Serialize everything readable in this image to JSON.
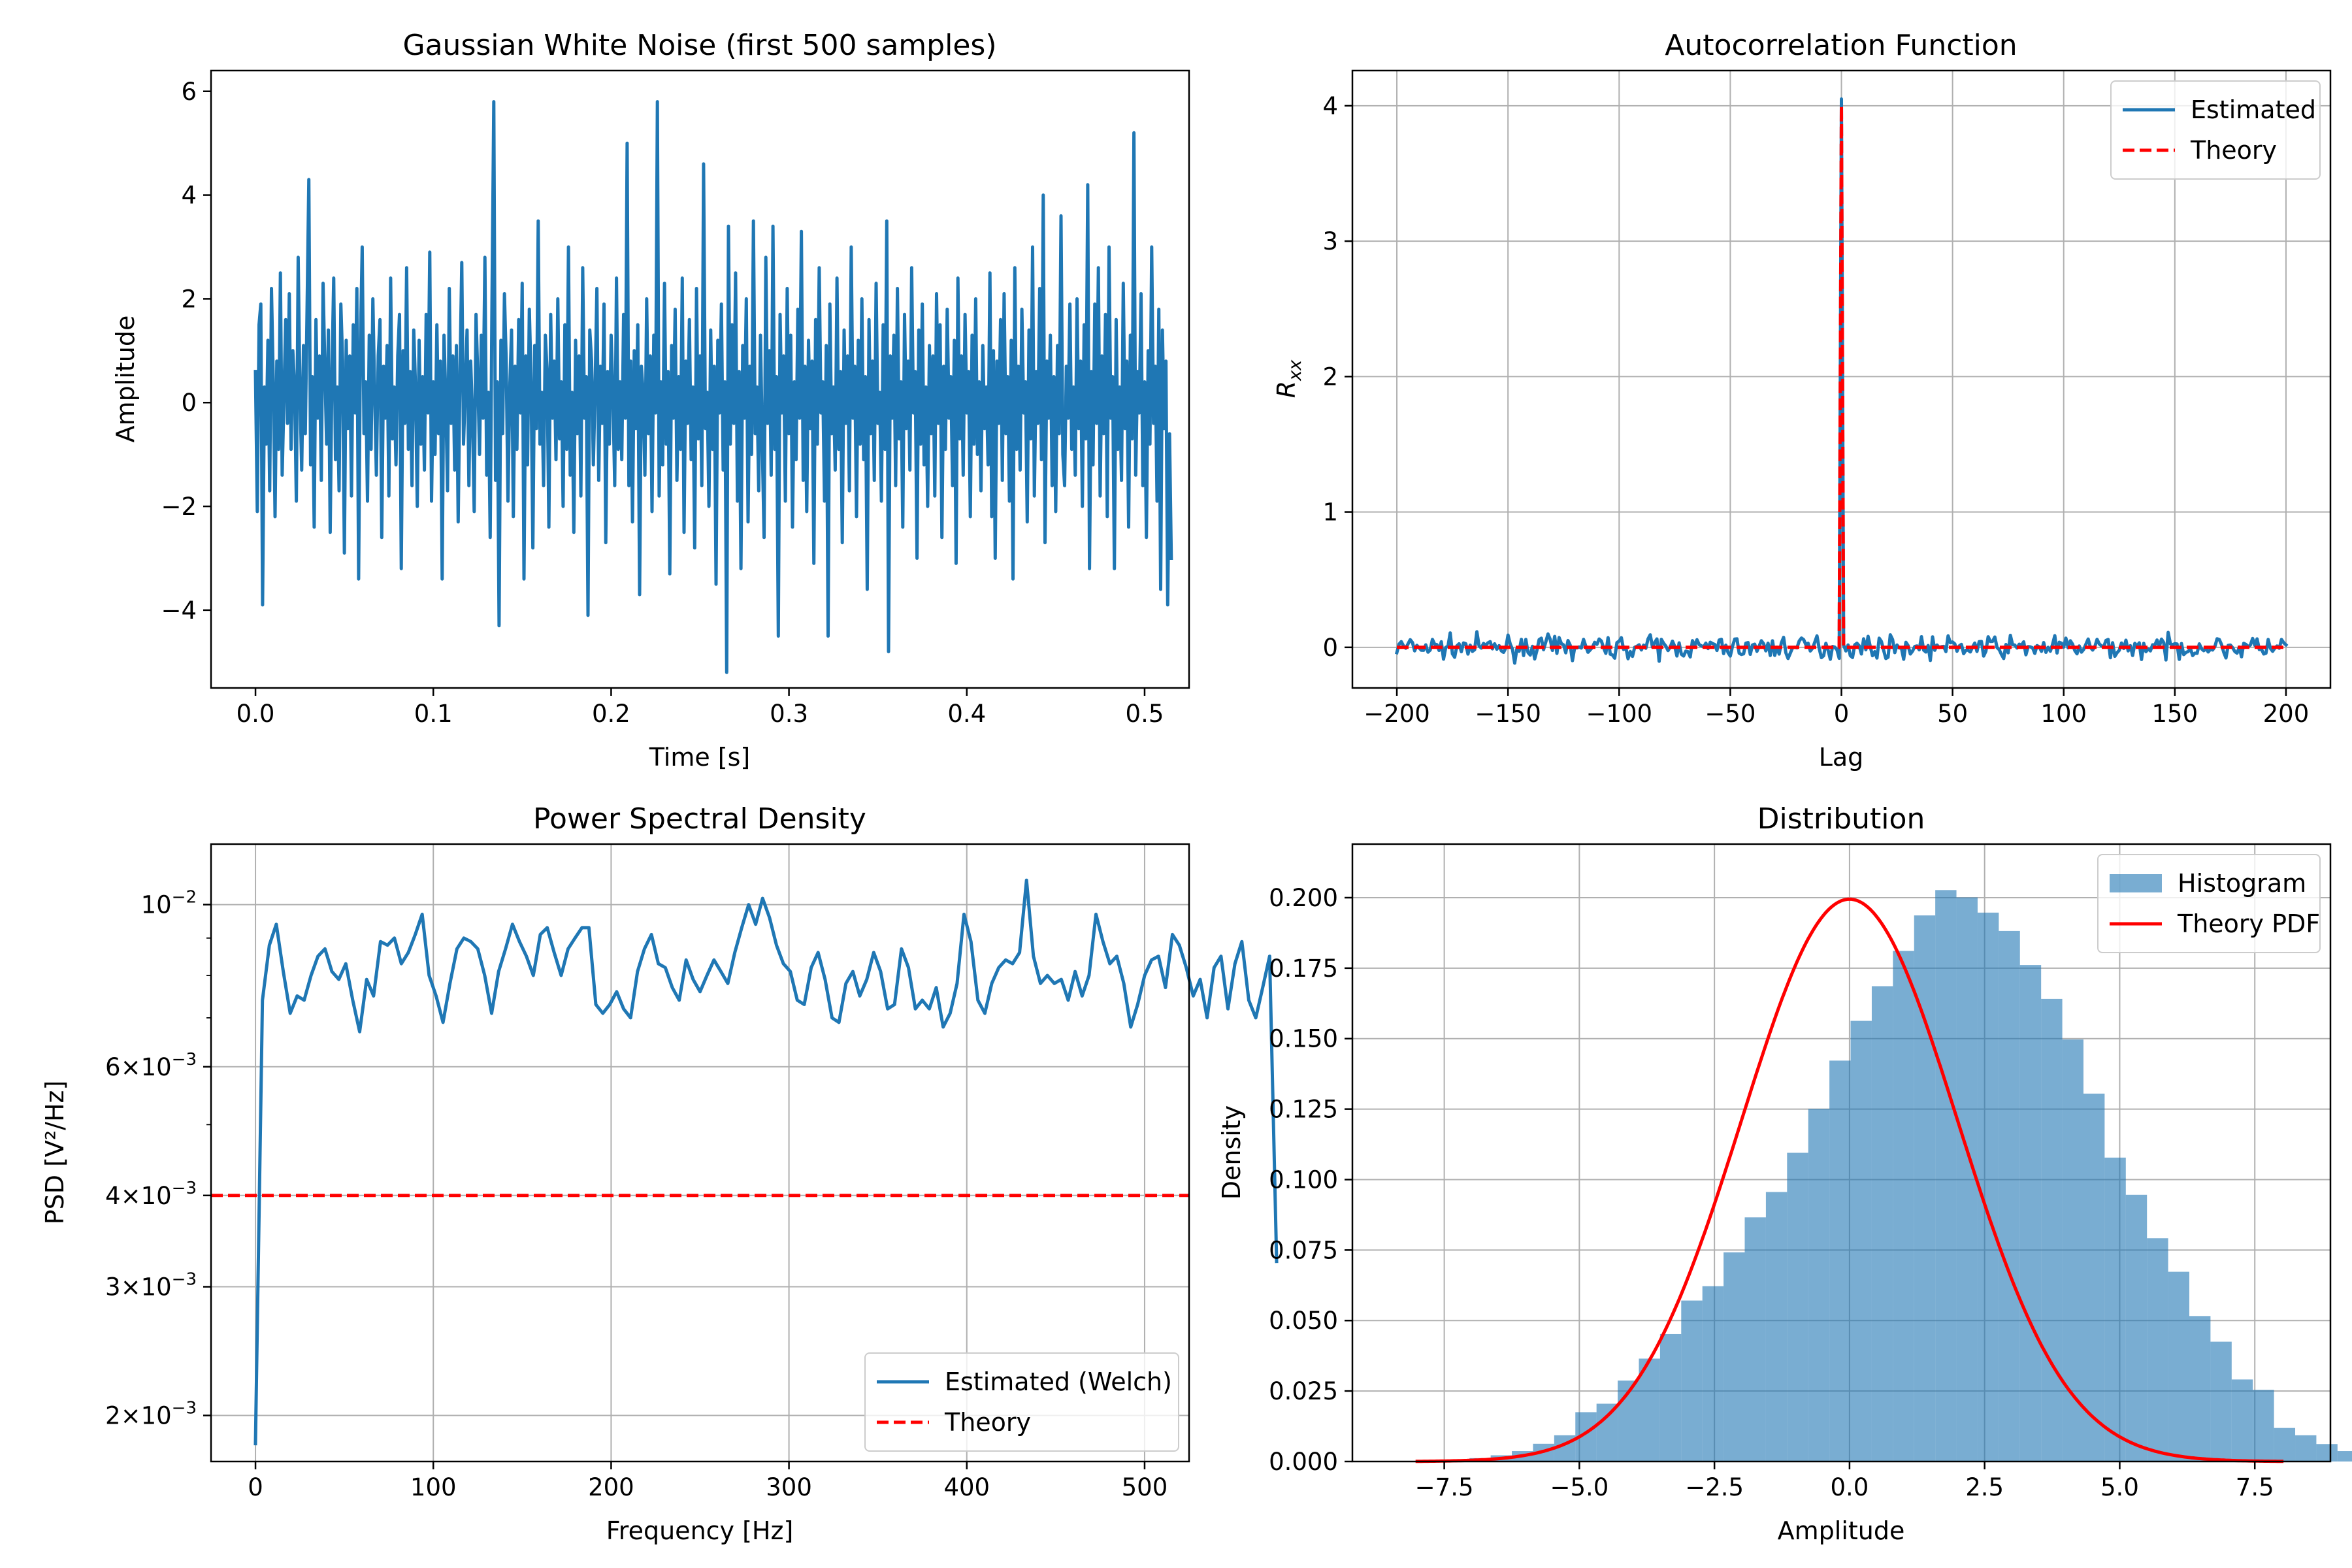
{
  "colors": {
    "estimated": "#1f77b4",
    "theory": "#ff0000",
    "histogram": "#1f77b4",
    "grid": "#b0b0b0"
  },
  "chart_data": [
    {
      "id": "noise",
      "type": "line",
      "title": "Gaussian White Noise (first 500 samples)",
      "xlabel": "Time [s]",
      "ylabel": "Amplitude",
      "xlim": [
        -0.025,
        0.525
      ],
      "ylim": [
        -5.5,
        6.4
      ],
      "grid": false,
      "xticks": [
        0.0,
        0.1,
        0.2,
        0.3,
        0.4,
        0.5
      ],
      "xtick_labels": [
        "0.0",
        "0.1",
        "0.2",
        "0.3",
        "0.4",
        "0.5"
      ],
      "yticks": [
        -4,
        -2,
        0,
        2,
        4,
        6
      ],
      "ytick_labels": [
        "−4",
        "−2",
        "0",
        "2",
        "4",
        "6"
      ],
      "series": [
        {
          "name": "Noise",
          "x_start": 0.0,
          "x_step": 0.001,
          "values": [
            0.6,
            -2.1,
            1.5,
            1.9,
            -3.9,
            0.3,
            -0.8,
            1.2,
            -1.7,
            2.2,
            0.4,
            -2.2,
            0.8,
            -0.9,
            2.5,
            -1.4,
            0.1,
            1.6,
            -0.4,
            2.1,
            -0.9,
            1.0,
            0.3,
            -1.9,
            2.8,
            0.2,
            -1.3,
            1.1,
            -0.6,
            1.8,
            4.3,
            -1.2,
            0.5,
            -2.4,
            1.6,
            -0.3,
            0.9,
            -1.5,
            2.3,
            0.7,
            -0.8,
            1.4,
            -2.5,
            0.6,
            2.4,
            -1.1,
            0.3,
            -1.7,
            1.9,
            0.8,
            -2.9,
            1.2,
            -0.5,
            0.9,
            -1.8,
            1.5,
            -0.2,
            2.2,
            -3.4,
            1.1,
            3.0,
            -0.6,
            0.4,
            -1.9,
            1.3,
            -0.9,
            2.0,
            0.2,
            -1.4,
            0.9,
            1.6,
            -2.6,
            0.7,
            -0.3,
            1.1,
            -1.8,
            2.4,
            -0.7,
            0.3,
            -1.2,
            0.9,
            1.7,
            -3.2,
            1.0,
            -0.4,
            2.6,
            -0.9,
            0.6,
            -1.6,
            1.4,
            0.3,
            -2.0,
            1.2,
            -0.8,
            0.5,
            -1.3,
            1.7,
            -0.2,
            2.9,
            -1.9,
            0.4,
            -1.0,
            1.5,
            -0.6,
            0.8,
            -3.4,
            1.3,
            0.1,
            -1.7,
            2.2,
            -0.4,
            0.9,
            -1.3,
            1.1,
            -2.3,
            0.6,
            2.7,
            -0.8,
            0.3,
            1.4,
            -1.6,
            0.8,
            -0.2,
            -2.1,
            1.7,
            0.5,
            -1.0,
            1.3,
            -0.3,
            2.8,
            -1.4,
            0.2,
            -2.6,
            1.9,
            5.8,
            -1.5,
            0.4,
            -4.3,
            1.2,
            -0.6,
            2.1,
            0.8,
            -1.9,
            0.3,
            1.4,
            -2.2,
            0.7,
            -0.9,
            1.6,
            -0.2,
            2.3,
            -3.4,
            0.9,
            -1.2,
            1.8,
            0.4,
            -2.8,
            1.1,
            -0.5,
            3.5,
            -0.8,
            0.2,
            -1.6,
            1.3,
            0.6,
            -2.4,
            1.7,
            -0.3,
            0.8,
            -1.1,
            2.0,
            -0.7,
            0.4,
            -2.0,
            1.5,
            -0.9,
            3.0,
            -1.4,
            0.2,
            -2.5,
            1.2,
            -0.6,
            0.9,
            -1.8,
            2.6,
            -0.3,
            0.5,
            -4.1,
            1.4,
            0.8,
            -1.2,
            0.3,
            2.2,
            -1.5,
            0.7,
            -0.4,
            1.9,
            -2.7,
            0.6,
            -0.8,
            1.3,
            0.2,
            -1.6,
            2.4,
            -0.9,
            0.4,
            -1.1,
            1.7,
            -0.3,
            5.0,
            -1.6,
            0.8,
            -2.3,
            1.0,
            -0.5,
            1.5,
            -3.7,
            0.7,
            0.2,
            -1.4,
            2.0,
            -0.6,
            0.9,
            -2.1,
            1.3,
            -0.2,
            5.8,
            -1.8,
            0.4,
            -1.2,
            2.3,
            -0.8,
            0.6,
            -3.3,
            1.1,
            -0.3,
            1.8,
            -1.5,
            0.5,
            -0.9,
            2.4,
            -2.5,
            0.8,
            -0.4,
            1.6,
            -1.1,
            0.3,
            -2.8,
            2.2,
            -0.7,
            0.9,
            -1.6,
            4.6,
            -0.5,
            0.2,
            -2.0,
            1.4,
            -0.9,
            0.7,
            -3.5,
            1.2,
            -0.2,
            1.9,
            -1.3,
            0.4,
            -5.2,
            3.4,
            -0.8,
            1.5,
            -0.4,
            2.5,
            -1.9,
            0.6,
            -3.2,
            1.1,
            -0.3,
            2.0,
            -2.3,
            0.7,
            -1.0,
            3.5,
            -0.6,
            0.3,
            -1.7,
            1.3,
            -0.8,
            -2.6,
            2.8,
            -0.4,
            1.0,
            -1.4,
            3.4,
            -0.9,
            0.5,
            -4.5,
            1.7,
            -0.2,
            0.9,
            -1.9,
            2.2,
            -0.6,
            1.3,
            -2.4,
            0.4,
            -1.1,
            1.8,
            -0.3,
            3.3,
            -1.5,
            0.7,
            -2.1,
            1.2,
            -0.5,
            0.8,
            -3.1,
            1.6,
            -0.8,
            2.6,
            -0.2,
            0.4,
            -1.9,
            1.1,
            -4.5,
            1.9,
            -0.6,
            0.3,
            -1.3,
            2.4,
            -0.9,
            0.6,
            -2.7,
            1.4,
            -0.4,
            0.9,
            -1.7,
            3.0,
            -0.3,
            0.7,
            -2.2,
            1.2,
            -0.8,
            2.0,
            -1.1,
            0.5,
            -3.6,
            1.6,
            -0.6,
            0.8,
            -1.5,
            2.3,
            -0.4,
            0.2,
            -1.9,
            1.5,
            -0.9,
            3.5,
            -4.8,
            0.9,
            -0.3,
            1.3,
            -1.6,
            2.2,
            -0.7,
            0.4,
            -2.4,
            1.7,
            -0.5,
            0.8,
            -1.3,
            2.6,
            -0.2,
            0.6,
            -3.0,
            1.4,
            -0.8,
            1.9,
            -1.2,
            0.3,
            -2.0,
            1.1,
            -0.6,
            0.9,
            -1.8,
            2.1,
            -0.4,
            1.5,
            -2.6,
            0.7,
            -0.9,
            1.8,
            -0.3,
            0.5,
            -1.6,
            1.2,
            -3.1,
            2.4,
            -0.7,
            0.9,
            -1.4,
            1.7,
            -0.2,
            0.6,
            -2.2,
            1.3,
            -0.8,
            2.0,
            -1.0,
            0.4,
            -1.7,
            1.1,
            -0.5,
            0.3,
            -1.2,
            2.5,
            -2.2,
            1.0,
            -3.0,
            0.8,
            -0.4,
            1.6,
            -1.5,
            2.1,
            -0.6,
            0.5,
            -1.9,
            1.2,
            -3.4,
            2.6,
            -0.9,
            0.7,
            -1.3,
            1.8,
            -0.2,
            0.4,
            -2.3,
            1.4,
            -0.7,
            3.0,
            -1.8,
            0.6,
            -0.4,
            2.2,
            -1.1,
            4.0,
            -2.7,
            0.8,
            -0.3,
            1.3,
            -1.6,
            0.5,
            -2.1,
            1.1,
            -0.6,
            3.6,
            -1.0,
            -1.6,
            0.7,
            -0.3,
            1.9,
            -0.9,
            0.3,
            -1.4,
            2.0,
            -0.5,
            0.8,
            -2.0,
            1.5,
            -0.7,
            4.2,
            -3.2,
            0.6,
            -1.2,
            1.9,
            -0.4,
            2.6,
            -1.8,
            0.9,
            -0.6,
            1.7,
            -2.2,
            3.0,
            -0.3,
            0.5,
            -3.2,
            1.6,
            -0.9,
            0.3,
            -1.5,
            2.3,
            -0.5,
            0.8,
            -2.4,
            1.3,
            -0.7,
            5.2,
            -1.4,
            0.6,
            -0.2,
            2.1,
            -1.6,
            0.4,
            -2.6,
            1.0,
            -0.8,
            3.0,
            -0.4,
            0.7,
            -1.9,
            1.8,
            -3.6,
            1.4,
            -0.5,
            0.8,
            -3.9,
            -0.6,
            -3.0
          ]
        }
      ]
    },
    {
      "id": "acf",
      "type": "line",
      "title": "Autocorrelation Function",
      "xlabel": "Lag",
      "ylabel": "R",
      "ylabel_sub": "xx",
      "xlim": [
        -220,
        220
      ],
      "ylim": [
        -0.3,
        4.26
      ],
      "grid": true,
      "xticks": [
        -200,
        -150,
        -100,
        -50,
        0,
        50,
        100,
        150,
        200
      ],
      "xtick_labels": [
        "−200",
        "−150",
        "−100",
        "−50",
        "0",
        "50",
        "100",
        "150",
        "200"
      ],
      "yticks": [
        0,
        1,
        2,
        3,
        4
      ],
      "ytick_labels": [
        "0",
        "1",
        "2",
        "3",
        "4"
      ],
      "legend": {
        "loc": "upper right",
        "entries": [
          "Estimated",
          "Theory"
        ]
      },
      "series": [
        {
          "name": "Estimated",
          "style": "solid",
          "lag_range": [
            -200,
            200
          ],
          "peak_value": 4.05,
          "noise_std": 0.04
        },
        {
          "name": "Theory",
          "style": "dashed",
          "x": [
            -200,
            -1,
            0,
            1,
            200
          ],
          "values": [
            0,
            0,
            4.0,
            0,
            0
          ]
        }
      ]
    },
    {
      "id": "psd",
      "type": "line",
      "title": "Power Spectral Density",
      "xlabel": "Frequency [Hz]",
      "ylabel": "PSD [V²/Hz]",
      "xlim": [
        -25,
        525
      ],
      "ylim": [
        0.00173,
        0.0121
      ],
      "yscale": "log",
      "grid": true,
      "xticks": [
        0,
        100,
        200,
        300,
        400,
        500
      ],
      "xtick_labels": [
        "0",
        "100",
        "200",
        "300",
        "400",
        "500"
      ],
      "yticks": [
        0.002,
        0.003,
        0.004,
        0.006,
        0.01
      ],
      "ytick_labels": [
        {
          "mant": "2×10",
          "exp": "−3"
        },
        {
          "mant": "3×10",
          "exp": "−3"
        },
        {
          "mant": "4×10",
          "exp": "−3"
        },
        {
          "mant": "6×10",
          "exp": "−3"
        },
        {
          "mant": "10",
          "exp": "−2"
        }
      ],
      "minor_yticks": [
        0.005,
        0.007,
        0.008,
        0.009
      ],
      "legend": {
        "loc": "lower right",
        "entries": [
          "Estimated (Welch)",
          "Theory"
        ]
      },
      "series": [
        {
          "name": "Estimated (Welch)",
          "style": "solid",
          "x_start": 0,
          "x_step": 3.90625,
          "values": [
            0.00183,
            0.0074,
            0.0088,
            0.0094,
            0.0081,
            0.0071,
            0.0075,
            0.0074,
            0.008,
            0.0085,
            0.0087,
            0.0081,
            0.0079,
            0.0083,
            0.0074,
            0.0067,
            0.0079,
            0.0075,
            0.0089,
            0.0088,
            0.009,
            0.0083,
            0.0086,
            0.0091,
            0.0097,
            0.008,
            0.0075,
            0.0069,
            0.0078,
            0.0087,
            0.009,
            0.0089,
            0.0087,
            0.008,
            0.0071,
            0.0081,
            0.0087,
            0.0094,
            0.0089,
            0.0085,
            0.008,
            0.0091,
            0.0093,
            0.0086,
            0.008,
            0.0087,
            0.009,
            0.0093,
            0.0093,
            0.0073,
            0.0071,
            0.0073,
            0.0076,
            0.0072,
            0.007,
            0.0081,
            0.0087,
            0.0091,
            0.0083,
            0.0082,
            0.0077,
            0.0074,
            0.0084,
            0.0079,
            0.0076,
            0.008,
            0.0084,
            0.0081,
            0.0078,
            0.0086,
            0.0093,
            0.01,
            0.0094,
            0.0102,
            0.0096,
            0.0088,
            0.0083,
            0.0081,
            0.0074,
            0.0073,
            0.0082,
            0.0086,
            0.0079,
            0.007,
            0.0069,
            0.0078,
            0.0081,
            0.0075,
            0.0079,
            0.0086,
            0.0081,
            0.0072,
            0.0073,
            0.0087,
            0.0082,
            0.0072,
            0.0074,
            0.0072,
            0.0077,
            0.0068,
            0.0071,
            0.0078,
            0.0097,
            0.0089,
            0.0074,
            0.0071,
            0.0078,
            0.0082,
            0.0084,
            0.0083,
            0.0086,
            0.0108,
            0.0085,
            0.0078,
            0.008,
            0.0078,
            0.0079,
            0.0074,
            0.0081,
            0.0075,
            0.008,
            0.0097,
            0.0089,
            0.0083,
            0.0085,
            0.0078,
            0.0068,
            0.0073,
            0.008,
            0.0084,
            0.0085,
            0.0077,
            0.0091,
            0.0088,
            0.0082,
            0.0075,
            0.0079,
            0.007,
            0.0082,
            0.0085,
            0.0072,
            0.0083,
            0.0089,
            0.0074,
            0.007,
            0.0077,
            0.0085,
            0.00325
          ]
        },
        {
          "name": "Theory",
          "style": "dashed",
          "x": [
            -25,
            525
          ],
          "values": [
            0.004,
            0.004
          ]
        }
      ]
    },
    {
      "id": "hist",
      "type": "bar",
      "title": "Distribution",
      "xlabel": "Amplitude",
      "ylabel": "Density",
      "xlim": [
        -9.2,
        8.9
      ],
      "ylim": [
        0,
        0.219
      ],
      "grid": true,
      "xticks": [
        -7.5,
        -5.0,
        -2.5,
        0.0,
        2.5,
        5.0,
        7.5
      ],
      "xtick_labels": [
        "−7.5",
        "−5.0",
        "−2.5",
        "0.0",
        "2.5",
        "5.0",
        "7.5"
      ],
      "yticks": [
        0,
        0.025,
        0.05,
        0.075,
        0.1,
        0.125,
        0.15,
        0.175,
        0.2
      ],
      "ytick_labels": [
        "0.000",
        "0.025",
        "0.050",
        "0.075",
        "0.100",
        "0.125",
        "0.150",
        "0.175",
        "0.200"
      ],
      "legend": {
        "loc": "upper right",
        "entries": [
          "Histogram",
          "Theory PDF"
        ]
      },
      "histogram": {
        "edges_start": -8.6,
        "bin_width": 0.3918,
        "values": [
          0.0001,
          0.0001,
          0.0003,
          0.0006,
          0.0012,
          0.0022,
          0.0037,
          0.0063,
          0.0093,
          0.0175,
          0.0205,
          0.0287,
          0.0365,
          0.0452,
          0.0571,
          0.0622,
          0.0742,
          0.0866,
          0.0956,
          0.1095,
          0.1251,
          0.1422,
          0.1563,
          0.1686,
          0.1811,
          0.1937,
          0.2027,
          0.2001,
          0.1947,
          0.1882,
          0.1761,
          0.1641,
          0.1497,
          0.1305,
          0.1078,
          0.0946,
          0.0792,
          0.0673,
          0.0516,
          0.0425,
          0.0291,
          0.0254,
          0.0119,
          0.0093,
          0.0062,
          0.0037,
          0.0018,
          0.0011
        ]
      },
      "pdf": {
        "name": "Theory PDF",
        "mean": 0,
        "std": 2,
        "x_range": [
          -8,
          8
        ]
      }
    }
  ]
}
